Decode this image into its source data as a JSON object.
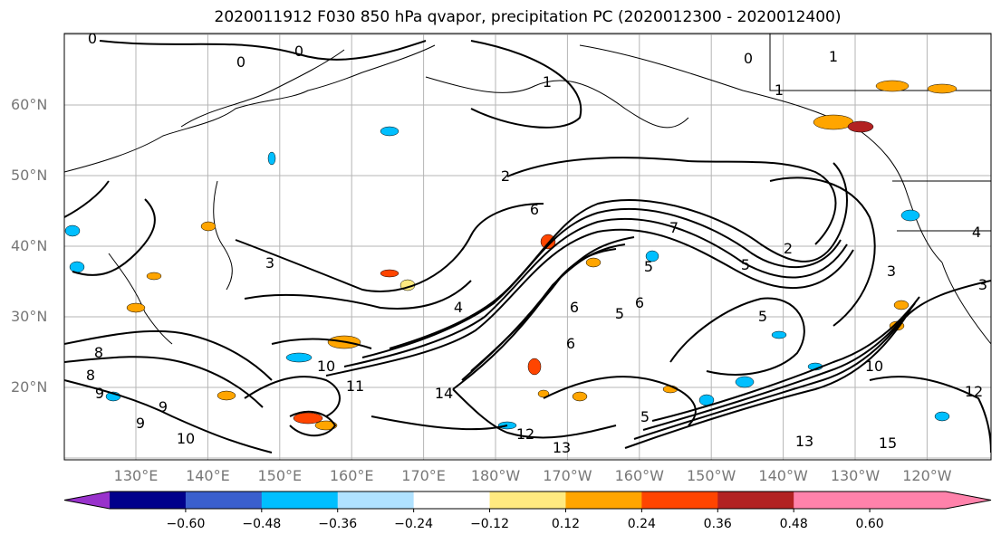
{
  "title": "2020011912 F030 850 hPa qvapor, precipitation PC (2020012300 - 2020012400)",
  "map": {
    "lat_labels": [
      {
        "label": "60°N",
        "lat": 60
      },
      {
        "label": "50°N",
        "lat": 50
      },
      {
        "label": "40°N",
        "lat": 40
      },
      {
        "label": "30°N",
        "lat": 30
      },
      {
        "label": "20°N",
        "lat": 20
      }
    ],
    "lon_labels": [
      {
        "label": "130°E",
        "lon": 130
      },
      {
        "label": "140°E",
        "lon": 140
      },
      {
        "label": "150°E",
        "lon": 150
      },
      {
        "label": "160°E",
        "lon": 160
      },
      {
        "label": "170°E",
        "lon": 170
      },
      {
        "label": "180°W",
        "lon": 180
      },
      {
        "label": "170°W",
        "lon": 190
      },
      {
        "label": "160°W",
        "lon": 200
      },
      {
        "label": "150°W",
        "lon": 210
      },
      {
        "label": "140°W",
        "lon": 220
      },
      {
        "label": "130°W",
        "lon": 230
      },
      {
        "label": "120°W",
        "lon": 240
      }
    ],
    "contour_labels": [
      "0",
      "0",
      "0",
      "0",
      "1",
      "1",
      "1",
      "2",
      "2",
      "6",
      "4",
      "5",
      "5",
      "3",
      "3",
      "3",
      "6",
      "5",
      "5",
      "6",
      "7",
      "4",
      "5",
      "6",
      "8",
      "9",
      "10",
      "10",
      "11",
      "12",
      "13",
      "13",
      "14",
      "15",
      "9",
      "8",
      "9",
      "10",
      "12"
    ]
  },
  "colorbar": {
    "ticks": [
      "−0.60",
      "−0.48",
      "−0.36",
      "−0.24",
      "−0.12",
      "0.12",
      "0.24",
      "0.36",
      "0.48",
      "0.60"
    ],
    "colors": [
      "#9932cc",
      "#00008b",
      "#3a5fcd",
      "#00bfff",
      "#b0e2ff",
      "#ffffff",
      "#ffea80",
      "#ffa500",
      "#ff4500",
      "#b22222",
      "#ff82ab"
    ]
  }
}
